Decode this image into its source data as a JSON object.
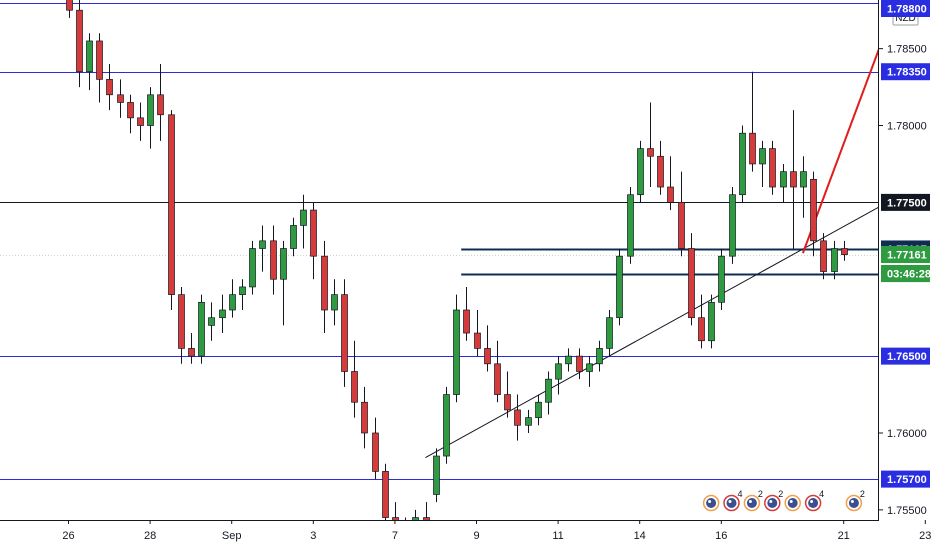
{
  "chart_data": {
    "type": "candlestick",
    "currency_label": "NZD",
    "ylim": [
      1.7546,
      1.7881
    ],
    "x_ticks": [
      {
        "label": "26",
        "index": 0
      },
      {
        "label": "28",
        "index": 8
      },
      {
        "label": "Sep",
        "index": 16
      },
      {
        "label": "3",
        "index": 24
      },
      {
        "label": "7",
        "index": 32
      },
      {
        "label": "9",
        "index": 40
      },
      {
        "label": "11",
        "index": 48
      },
      {
        "label": "14",
        "index": 56
      },
      {
        "label": "16",
        "index": 64
      },
      {
        "label": "21",
        "index": 76
      },
      {
        "label": "23",
        "index": 84
      }
    ],
    "y_ticks": [
      {
        "label": "1.78500",
        "value": 1.785
      },
      {
        "label": "1.78000",
        "value": 1.78
      },
      {
        "label": "1.76000",
        "value": 1.76
      },
      {
        "label": "1.75500",
        "value": 1.755
      }
    ],
    "candles": [
      [
        1.7895,
        1.7905,
        1.787,
        1.7875
      ],
      [
        1.7875,
        1.7885,
        1.7825,
        1.7835
      ],
      [
        1.7835,
        1.786,
        1.7823,
        1.7855
      ],
      [
        1.7855,
        1.786,
        1.7815,
        1.783
      ],
      [
        1.783,
        1.784,
        1.781,
        1.782
      ],
      [
        1.782,
        1.783,
        1.7805,
        1.7815
      ],
      [
        1.7815,
        1.782,
        1.7795,
        1.7805
      ],
      [
        1.7805,
        1.7815,
        1.779,
        1.78
      ],
      [
        1.78,
        1.7825,
        1.7785,
        1.782
      ],
      [
        1.782,
        1.784,
        1.779,
        1.7807
      ],
      [
        1.7807,
        1.781,
        1.768,
        1.769
      ],
      [
        1.769,
        1.7695,
        1.7645,
        1.7655
      ],
      [
        1.7655,
        1.7665,
        1.7645,
        1.765
      ],
      [
        1.765,
        1.769,
        1.7645,
        1.7685
      ],
      [
        1.767,
        1.7685,
        1.766,
        1.7675
      ],
      [
        1.7675,
        1.769,
        1.7665,
        1.768
      ],
      [
        1.768,
        1.77,
        1.7675,
        1.769
      ],
      [
        1.769,
        1.77,
        1.768,
        1.7695
      ],
      [
        1.7695,
        1.7725,
        1.769,
        1.772
      ],
      [
        1.772,
        1.7735,
        1.7705,
        1.7725
      ],
      [
        1.7725,
        1.7735,
        1.769,
        1.77
      ],
      [
        1.77,
        1.7725,
        1.767,
        1.772
      ],
      [
        1.772,
        1.774,
        1.7715,
        1.7735
      ],
      [
        1.7735,
        1.7755,
        1.772,
        1.7745
      ],
      [
        1.7745,
        1.775,
        1.77,
        1.7715
      ],
      [
        1.7715,
        1.7725,
        1.7665,
        1.768
      ],
      [
        1.768,
        1.77,
        1.767,
        1.769
      ],
      [
        1.769,
        1.77,
        1.763,
        1.764
      ],
      [
        1.764,
        1.766,
        1.761,
        1.762
      ],
      [
        1.762,
        1.763,
        1.759,
        1.76
      ],
      [
        1.76,
        1.761,
        1.757,
        1.7575
      ],
      [
        1.7575,
        1.758,
        1.754,
        1.7545
      ],
      [
        1.7545,
        1.7555,
        1.752,
        1.753
      ],
      [
        1.753,
        1.7545,
        1.7515,
        1.754
      ],
      [
        1.754,
        1.755,
        1.753,
        1.7545
      ],
      [
        1.7545,
        1.7555,
        1.7535,
        1.754
      ],
      [
        1.756,
        1.759,
        1.7555,
        1.7585
      ],
      [
        1.7585,
        1.763,
        1.758,
        1.7625
      ],
      [
        1.7625,
        1.769,
        1.762,
        1.768
      ],
      [
        1.768,
        1.7695,
        1.766,
        1.7665
      ],
      [
        1.7665,
        1.768,
        1.765,
        1.7655
      ],
      [
        1.7655,
        1.767,
        1.764,
        1.7645
      ],
      [
        1.7645,
        1.766,
        1.762,
        1.7625
      ],
      [
        1.7625,
        1.764,
        1.761,
        1.7615
      ],
      [
        1.7615,
        1.7625,
        1.7595,
        1.7605
      ],
      [
        1.7605,
        1.7615,
        1.76,
        1.761
      ],
      [
        1.761,
        1.7625,
        1.7605,
        1.762
      ],
      [
        1.762,
        1.764,
        1.7612,
        1.7635
      ],
      [
        1.7635,
        1.765,
        1.7625,
        1.7645
      ],
      [
        1.7645,
        1.7655,
        1.764,
        1.765
      ],
      [
        1.765,
        1.7655,
        1.7635,
        1.764
      ],
      [
        1.764,
        1.765,
        1.763,
        1.7645
      ],
      [
        1.7645,
        1.766,
        1.764,
        1.7655
      ],
      [
        1.7655,
        1.768,
        1.765,
        1.7675
      ],
      [
        1.7675,
        1.772,
        1.767,
        1.7715
      ],
      [
        1.7715,
        1.776,
        1.771,
        1.7755
      ],
      [
        1.7755,
        1.779,
        1.775,
        1.7785
      ],
      [
        1.7785,
        1.7815,
        1.776,
        1.778
      ],
      [
        1.778,
        1.779,
        1.7755,
        1.776
      ],
      [
        1.776,
        1.778,
        1.7745,
        1.775
      ],
      [
        1.775,
        1.777,
        1.7715,
        1.772
      ],
      [
        1.772,
        1.773,
        1.767,
        1.7675
      ],
      [
        1.7675,
        1.769,
        1.7655,
        1.766
      ],
      [
        1.766,
        1.769,
        1.7655,
        1.7685
      ],
      [
        1.7685,
        1.772,
        1.768,
        1.7715
      ],
      [
        1.7715,
        1.776,
        1.771,
        1.7755
      ],
      [
        1.7755,
        1.78,
        1.775,
        1.7795
      ],
      [
        1.7795,
        1.7835,
        1.777,
        1.7775
      ],
      [
        1.7775,
        1.779,
        1.776,
        1.7785
      ],
      [
        1.7785,
        1.779,
        1.7755,
        1.776
      ],
      [
        1.776,
        1.7775,
        1.775,
        1.777
      ],
      [
        1.777,
        1.781,
        1.772,
        1.776
      ],
      [
        1.776,
        1.778,
        1.774,
        1.777
      ],
      [
        1.7765,
        1.777,
        1.7715,
        1.7725
      ],
      [
        1.7725,
        1.773,
        1.77,
        1.7705
      ],
      [
        1.7705,
        1.7725,
        1.77,
        1.772
      ],
      [
        1.772,
        1.7725,
        1.7712,
        1.7716
      ]
    ],
    "horizontal_levels": [
      {
        "label": "1.78800",
        "value": 1.788,
        "style": "blue"
      },
      {
        "label": "1.78350",
        "value": 1.7835,
        "style": "blue"
      },
      {
        "label": "1.77500",
        "value": 1.775,
        "style": "black"
      },
      {
        "label": "1.77197",
        "value": 1.77197,
        "style": "navy"
      },
      {
        "label": "1.77037",
        "value": 1.77037,
        "style": "navy"
      },
      {
        "label": "1.76500",
        "value": 1.765,
        "style": "blue"
      },
      {
        "label": "1.75700",
        "value": 1.757,
        "style": "blue"
      }
    ],
    "current_price": {
      "label": "1.77161",
      "value": 1.77161,
      "countdown": "03:46:28"
    },
    "trendline": {
      "from": [
        35,
        1.7584
      ],
      "to": [
        83,
        1.776
      ]
    },
    "projection": {
      "from": [
        72,
        1.7717
      ],
      "to": [
        82,
        1.7895
      ]
    },
    "events": [
      {
        "index": 63,
        "count": ""
      },
      {
        "index": 65,
        "count": "4"
      },
      {
        "index": 67,
        "count": "2"
      },
      {
        "index": 69,
        "count": "2"
      },
      {
        "index": 71,
        "count": ""
      },
      {
        "index": 73,
        "count": "4"
      },
      {
        "index": 77,
        "count": "2"
      }
    ]
  }
}
